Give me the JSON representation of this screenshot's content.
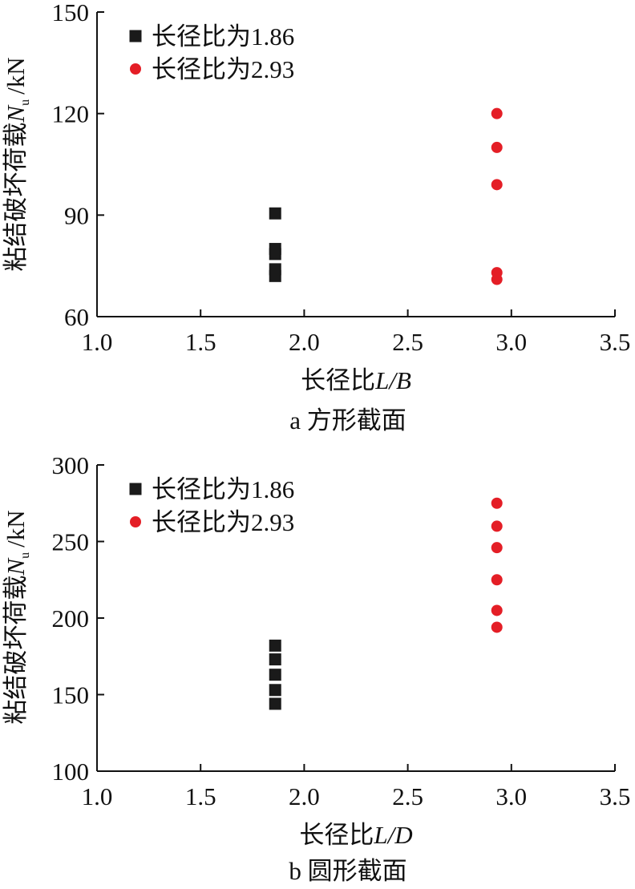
{
  "chart_data": [
    {
      "type": "scatter",
      "caption": "a 方形截面",
      "xlabel": {
        "main": "长径比",
        "var": "L/B"
      },
      "ylabel": {
        "main": "粘结破坏荷载",
        "var": "N",
        "sub": "u",
        "unit": "/kN"
      },
      "xlim": [
        1.0,
        3.5
      ],
      "ylim": [
        60,
        150
      ],
      "xticks": [
        "1.0",
        "1.5",
        "2.0",
        "2.5",
        "3.0",
        "3.5"
      ],
      "yticks": [
        "60",
        "90",
        "120",
        "150"
      ],
      "grid": false,
      "legend_position": "top-left",
      "series": [
        {
          "name": "长径比为1.86",
          "marker": "square",
          "color": "#1a1a1a",
          "points": [
            [
              1.86,
              90.5
            ],
            [
              1.86,
              80
            ],
            [
              1.86,
              78.5
            ],
            [
              1.86,
              74
            ],
            [
              1.86,
              72
            ]
          ]
        },
        {
          "name": "长径比为2.93",
          "marker": "circle",
          "color": "#e41e26",
          "points": [
            [
              2.93,
              120
            ],
            [
              2.93,
              110
            ],
            [
              2.93,
              99
            ],
            [
              2.93,
              73
            ],
            [
              2.93,
              71
            ]
          ]
        }
      ]
    },
    {
      "type": "scatter",
      "caption": "b 圆形截面",
      "xlabel": {
        "main": "长径比",
        "var": "L/D"
      },
      "ylabel": {
        "main": "粘结破坏荷载",
        "var": "N",
        "sub": "u",
        "unit": "/kN"
      },
      "xlim": [
        1.0,
        3.5
      ],
      "ylim": [
        100,
        300
      ],
      "xticks": [
        "1.0",
        "1.5",
        "2.0",
        "2.5",
        "3.0",
        "3.5"
      ],
      "yticks": [
        "100",
        "150",
        "200",
        "250",
        "300"
      ],
      "grid": false,
      "legend_position": "top-left",
      "series": [
        {
          "name": "长径比为1.86",
          "marker": "square",
          "color": "#1a1a1a",
          "points": [
            [
              1.86,
              182
            ],
            [
              1.86,
              173
            ],
            [
              1.86,
              163
            ],
            [
              1.86,
              153
            ],
            [
              1.86,
              144
            ]
          ]
        },
        {
          "name": "长径比为2.93",
          "marker": "circle",
          "color": "#e41e26",
          "points": [
            [
              2.93,
              275
            ],
            [
              2.93,
              260
            ],
            [
              2.93,
              246
            ],
            [
              2.93,
              225
            ],
            [
              2.93,
              205
            ],
            [
              2.93,
              194
            ]
          ]
        }
      ]
    }
  ]
}
